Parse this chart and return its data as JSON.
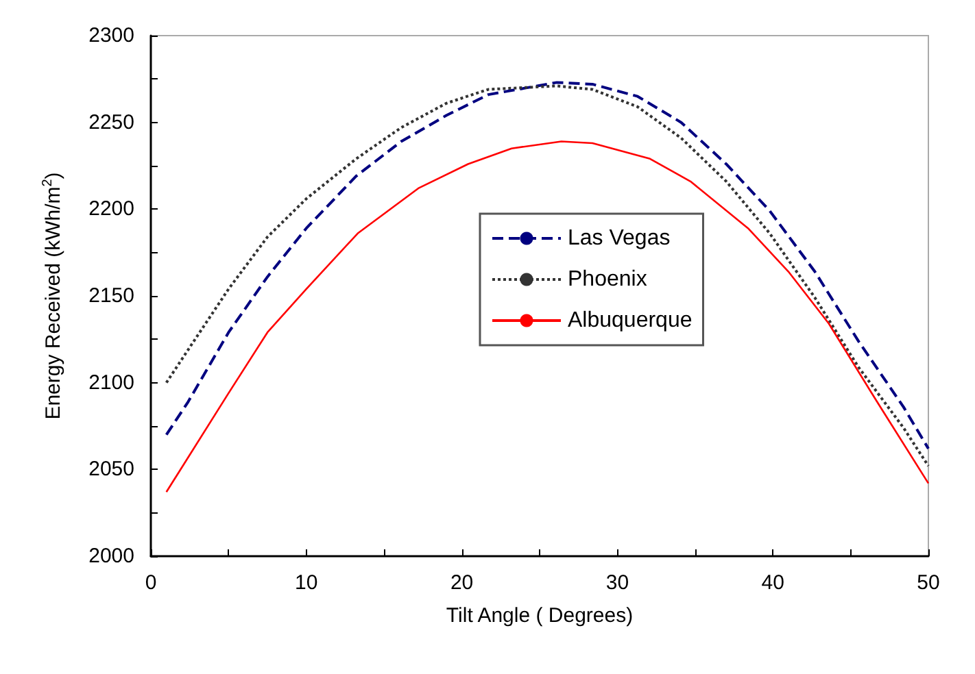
{
  "chart_data": {
    "type": "line",
    "xlabel": "Tilt Angle ( Degrees)",
    "ylabel": "Energy Received (kWh/m$^{2}$)",
    "xlim": [
      0,
      50
    ],
    "xticks": [
      0,
      {
        "value": 5,
        "label": null
      },
      10,
      {
        "value": 15,
        "label": null
      },
      20,
      {
        "value": 25,
        "label": null
      },
      30,
      {
        "value": 35,
        "label": null
      },
      40,
      {
        "value": 45,
        "label": null
      },
      50
    ],
    "ylim": [
      2000,
      2300
    ],
    "yticks": [
      2000,
      {
        "value": 2025,
        "label": null
      },
      2050,
      {
        "value": 2075,
        "label": null
      },
      2100,
      {
        "value": 2125,
        "label": null
      },
      2150,
      {
        "value": 2175,
        "label": null
      },
      2200,
      {
        "value": 2225,
        "label": null
      },
      2250,
      {
        "value": 2275,
        "label": null
      },
      2300
    ],
    "grid": false,
    "legend": "center",
    "marker": "none",
    "series": [
      {
        "name": "Las Vegas",
        "color": "#000080",
        "line_style": "dashed",
        "x": [
          1,
          2.4,
          5,
          7.5,
          10,
          13.2,
          16.1,
          19,
          21.7,
          26.1,
          28.4,
          31.3,
          34.1,
          37,
          39.8,
          42.7,
          45.5,
          48.4,
          50
        ],
        "values": [
          2070,
          2089,
          2129,
          2161,
          2189,
          2219,
          2239,
          2254,
          2266,
          2273,
          2272,
          2265,
          2250,
          2226,
          2199,
          2164,
          2124,
          2086,
          2062
        ]
      },
      {
        "name": "Phoenix",
        "color": "#333333",
        "line_style": "dotted",
        "x": [
          1,
          2.4,
          5,
          7.5,
          10,
          13.2,
          16.1,
          19,
          21.7,
          26.1,
          28.4,
          31.3,
          34.1,
          37,
          39.8,
          42.7,
          45.5,
          48.4,
          50
        ],
        "values": [
          2100,
          2119,
          2154,
          2184,
          2206,
          2229,
          2247,
          2261,
          2269,
          2271,
          2269,
          2259,
          2241,
          2216,
          2186,
          2149,
          2109,
          2074,
          2052
        ]
      },
      {
        "name": "Albuquerque",
        "color": "#ff0000",
        "line_style": "solid",
        "x": [
          1,
          5,
          7.5,
          10,
          13.3,
          17.2,
          20.4,
          23.2,
          26.4,
          28.4,
          32.1,
          34.7,
          38.4,
          41,
          43.6,
          46.7,
          50
        ],
        "values": [
          2037,
          2094,
          2129,
          2154,
          2186,
          2212,
          2226,
          2235,
          2239,
          2238,
          2229,
          2216,
          2189,
          2164,
          2134,
          2089,
          2042
        ]
      }
    ]
  }
}
